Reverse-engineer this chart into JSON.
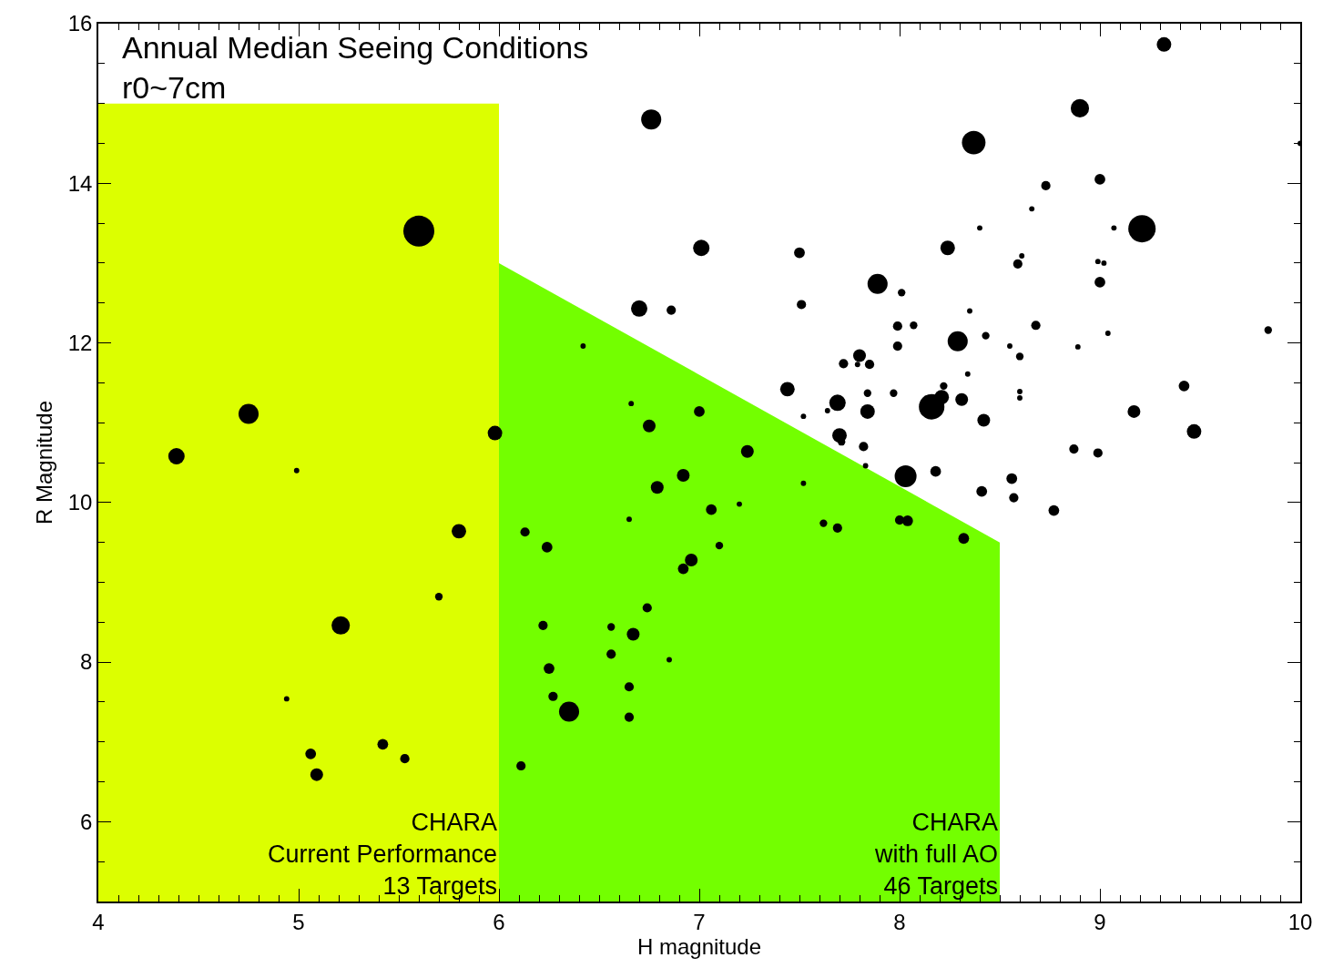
{
  "chart_data": {
    "type": "bubble",
    "title": "Annual Median Seeing Conditions",
    "subtitle": "r0~7cm",
    "xlabel": "H magnitude",
    "ylabel": "R Magnitude",
    "xlim": [
      4,
      10
    ],
    "xticks": [
      4,
      5,
      6,
      7,
      8,
      9,
      10
    ],
    "ylim": [
      5,
      16
    ],
    "yticks": [
      6,
      8,
      10,
      12,
      14,
      16
    ],
    "series": [
      {
        "type": "area",
        "color": "#dcff00",
        "x": [
          4,
          6
        ],
        "values": [
          15,
          15
        ]
      },
      {
        "type": "area",
        "color": "#73ff00",
        "x": [
          6,
          8.5
        ],
        "values": [
          13,
          9.5
        ]
      },
      {
        "color": "#000000",
        "x": [
          4.39,
          4.75,
          4.99,
          5.6,
          5.98,
          5.8,
          5.7,
          5.21,
          4.94,
          5.06,
          5.09,
          5.42,
          5.53,
          6.13,
          6.24,
          6.42,
          6.66,
          6.75,
          7.0,
          6.92,
          6.79,
          6.65,
          7.06,
          7.2,
          7.24,
          7.1,
          6.96,
          6.92,
          6.74,
          6.22,
          6.56,
          6.67,
          6.56,
          6.25,
          6.65,
          6.27,
          6.35,
          6.65,
          6.11,
          6.85,
          7.52,
          7.62,
          7.69,
          7.7,
          7.71,
          7.82,
          7.44,
          7.52,
          7.69,
          7.84,
          8.0,
          8.04,
          8.32,
          9.32,
          8.9,
          8.37,
          6.76,
          10.0,
          9.0,
          8.73,
          9.21,
          8.66,
          8.4,
          9.07,
          7.01,
          7.5,
          8.24,
          8.61,
          8.59,
          8.99,
          9.02,
          7.89,
          9.0,
          6.7,
          6.86,
          8.01,
          7.51,
          8.35,
          7.99,
          8.07,
          8.68,
          8.29,
          8.43,
          7.99,
          8.55,
          8.6,
          8.89,
          9.04,
          9.84,
          7.8,
          7.85,
          7.72,
          7.79,
          8.34,
          7.84,
          7.97,
          8.22,
          8.21,
          8.16,
          8.31,
          8.6,
          8.6,
          8.42,
          9.17,
          9.42,
          9.47,
          7.64,
          8.87,
          8.99,
          7.83,
          8.18,
          8.03,
          8.56,
          8.41,
          8.57,
          8.77
        ],
        "values": [
          10.58,
          11.11,
          10.4,
          13.4,
          10.87,
          9.64,
          8.82,
          8.46,
          7.54,
          6.85,
          6.59,
          6.97,
          6.79,
          9.63,
          9.44,
          11.96,
          11.24,
          10.96,
          11.14,
          10.34,
          10.19,
          9.79,
          9.91,
          9.98,
          10.64,
          9.46,
          9.28,
          9.17,
          8.68,
          8.46,
          8.44,
          8.35,
          8.1,
          7.92,
          7.69,
          7.57,
          7.38,
          7.31,
          6.7,
          8.03,
          10.24,
          9.74,
          9.68,
          10.84,
          10.76,
          10.7,
          11.42,
          11.08,
          11.25,
          11.14,
          9.78,
          9.77,
          9.55,
          15.74,
          14.94,
          14.51,
          14.8,
          14.5,
          14.05,
          13.97,
          13.43,
          13.68,
          13.44,
          13.44,
          13.19,
          13.13,
          13.19,
          13.09,
          12.99,
          13.02,
          13.0,
          12.74,
          12.76,
          12.43,
          12.41,
          12.63,
          12.48,
          12.4,
          12.21,
          12.22,
          12.22,
          12.02,
          12.09,
          11.96,
          11.96,
          11.83,
          11.95,
          12.12,
          12.16,
          11.84,
          11.73,
          11.74,
          11.73,
          11.61,
          11.37,
          11.37,
          11.46,
          11.32,
          11.2,
          11.29,
          11.39,
          11.31,
          11.03,
          11.14,
          11.46,
          10.89,
          11.15,
          10.67,
          10.62,
          10.46,
          10.39,
          10.33,
          10.3,
          10.14,
          10.06,
          9.9
        ],
        "sizes": [
          0.28,
          0.42,
          0.03,
          1,
          0.22,
          0.22,
          0.06,
          0.35,
          0.03,
          0.12,
          0.17,
          0.12,
          0.09,
          0.09,
          0.12,
          0.03,
          0.03,
          0.17,
          0.12,
          0.17,
          0.17,
          0.03,
          0.12,
          0.03,
          0.17,
          0.06,
          0.17,
          0.12,
          0.09,
          0.09,
          0.06,
          0.17,
          0.09,
          0.12,
          0.09,
          0.09,
          0.42,
          0.09,
          0.09,
          0.03,
          0.03,
          0.06,
          0.09,
          0.22,
          0.06,
          0.09,
          0.22,
          0.03,
          0.28,
          0.22,
          0.09,
          0.12,
          0.12,
          0.22,
          0.35,
          0.58,
          0.42,
          0.03,
          0.12,
          0.09,
          0.78,
          0.03,
          0.03,
          0.03,
          0.28,
          0.12,
          0.22,
          0.03,
          0.09,
          0.03,
          0.03,
          0.42,
          0.12,
          0.28,
          0.09,
          0.06,
          0.09,
          0.03,
          0.09,
          0.06,
          0.09,
          0.42,
          0.06,
          0.09,
          0.03,
          0.06,
          0.03,
          0.03,
          0.06,
          0.17,
          0.09,
          0.09,
          0.03,
          0.03,
          0.06,
          0.06,
          0.06,
          0.22,
          0.68,
          0.17,
          0.03,
          0.03,
          0.17,
          0.17,
          0.12,
          0.22,
          0.03,
          0.09,
          0.09,
          0.03,
          0.12,
          0.5,
          0.12,
          0.12,
          0.09,
          0.12
        ]
      }
    ],
    "annotations": [
      "CHARA\nCurrent Performance\n13 Targets",
      "CHARA\nwith full AO\n46 Targets"
    ]
  }
}
